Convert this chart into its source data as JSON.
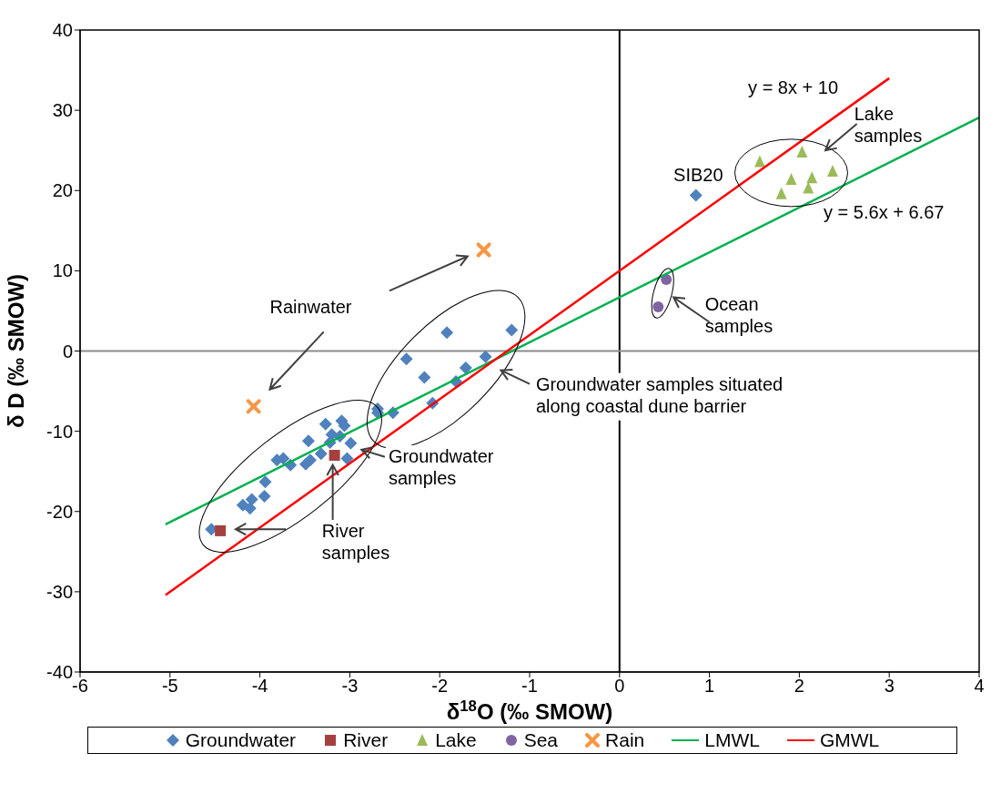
{
  "chart_data": {
    "type": "scatter",
    "xlabel": "δ$^{18}$O (‰ SMOW)",
    "ylabel": "δ D (‰ SMOW)",
    "xlim": [
      -6,
      4
    ],
    "xticks": [
      -6,
      -5,
      -4,
      -3,
      -2,
      -1,
      0,
      1,
      2,
      3,
      4
    ],
    "ylim": [
      -40,
      40
    ],
    "yticks": [
      -40,
      -30,
      -20,
      -10,
      0,
      10,
      20,
      30,
      40
    ],
    "grid": false,
    "legend": "bottom",
    "series": [
      {
        "name": "Groundwater",
        "type": "scatter",
        "marker": "diamond",
        "color": "#4f81bd",
        "x": [
          -1.2,
          -1.92,
          -2.37,
          -1.49,
          -1.71,
          -2.17,
          -1.82,
          -2.08,
          -2.69,
          -2.69,
          -2.52,
          -3.27,
          -3.09,
          -3.06,
          -3.2,
          -3.11,
          -3.46,
          -3.22,
          -2.99,
          -3.32,
          -3.03,
          -3.44,
          -3.49,
          -3.81,
          -3.74,
          -3.66,
          -3.94,
          -3.95,
          -4.19,
          -4.09,
          -4.11,
          -4.54,
          0.85
        ],
        "values": [
          2.6,
          2.3,
          -1.0,
          -0.7,
          -2.1,
          -3.3,
          -3.8,
          -6.5,
          -7.2,
          -7.7,
          -7.7,
          -9.1,
          -8.7,
          -9.3,
          -10.4,
          -10.6,
          -11.2,
          -11.4,
          -11.5,
          -12.8,
          -13.4,
          -13.6,
          -14.1,
          -13.6,
          -13.4,
          -14.2,
          -16.3,
          -18.1,
          -19.2,
          -18.5,
          -19.6,
          -22.2,
          19.4
        ]
      },
      {
        "name": "River",
        "type": "scatter",
        "marker": "square",
        "color": "#a5403e",
        "x": [
          -3.17,
          -4.44
        ],
        "values": [
          -13.0,
          -22.4
        ]
      },
      {
        "name": "Lake",
        "type": "scatter",
        "marker": "triangle",
        "color": "#9bbb59",
        "x": [
          2.03,
          1.56,
          2.37,
          2.14,
          1.91,
          2.1,
          1.8
        ],
        "values": [
          24.8,
          23.6,
          22.4,
          21.6,
          21.4,
          20.3,
          19.6
        ]
      },
      {
        "name": "Sea",
        "type": "scatter",
        "marker": "circle",
        "color": "#8064a2",
        "x": [
          0.52,
          0.43
        ],
        "values": [
          8.9,
          5.5
        ]
      },
      {
        "name": "Rain",
        "type": "scatter",
        "marker": "cross",
        "color": "#f79646",
        "x": [
          -1.51,
          -4.07
        ],
        "values": [
          12.6,
          -6.9
        ]
      },
      {
        "name": "LMWL",
        "type": "line",
        "marker": "none",
        "color": "#00b050",
        "x": [
          -5.05,
          4
        ],
        "values": [
          -21.6,
          29.1
        ]
      },
      {
        "name": "GMWL",
        "type": "line",
        "marker": "none",
        "color": "#ff0000",
        "x": [
          -5.05,
          3
        ],
        "values": [
          -30.4,
          34
        ]
      }
    ],
    "ref_lines": [
      {
        "axis": "x",
        "value": 0,
        "color": "#000000"
      },
      {
        "axis": "y",
        "value": 0,
        "color": "#8c8c8c"
      }
    ],
    "annotations": [
      "y = 8x + 10",
      "y = 5.6x + 6.67",
      "Lake\nsamples",
      "SIB20",
      "Ocean\nsamples",
      "Rainwater",
      "Groundwater samples situated\nalong coastal dune barrier",
      "Groundwater\nsamples",
      "River\nsamples"
    ]
  }
}
